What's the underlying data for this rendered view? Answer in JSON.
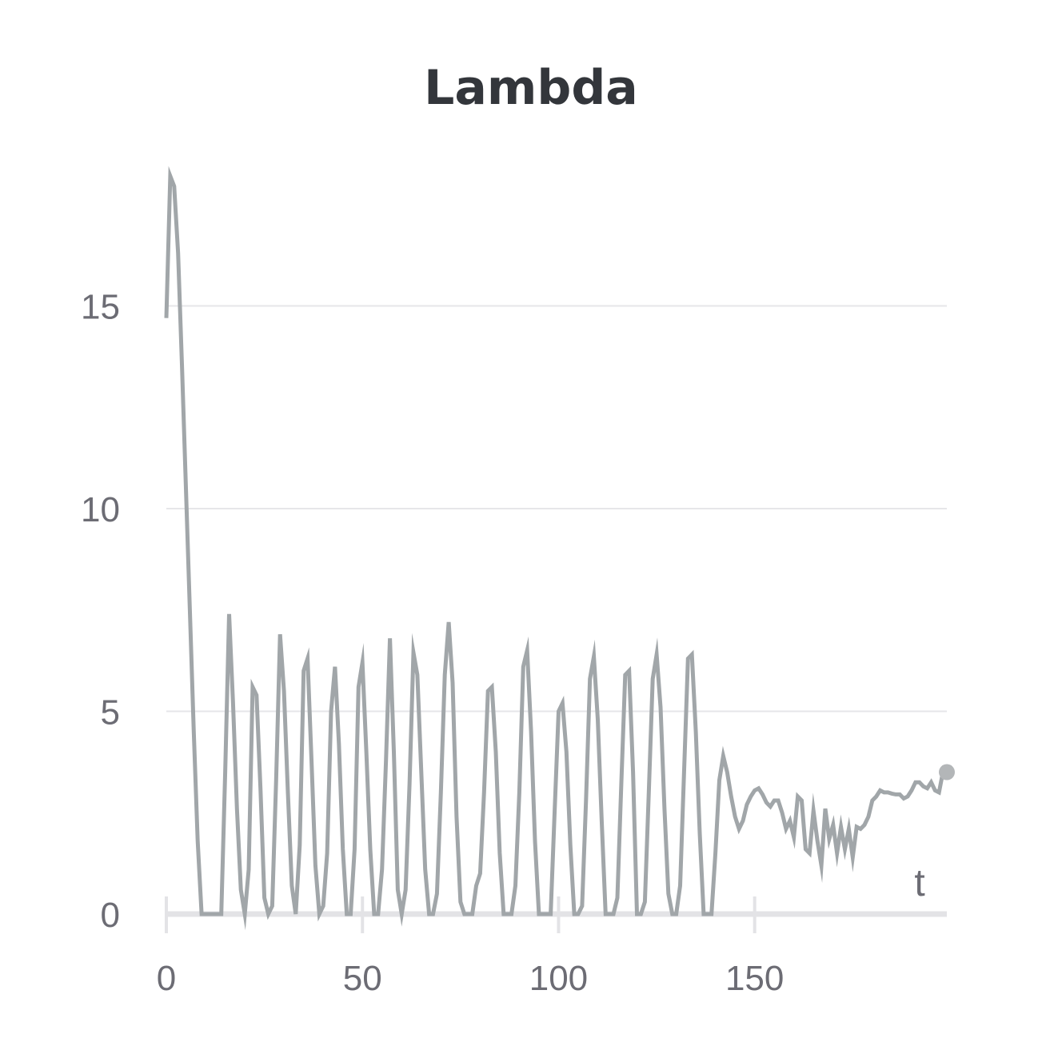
{
  "chart_data": {
    "type": "line",
    "title": "Lambda",
    "xlabel": "t",
    "ylabel": "",
    "xlim": [
      0,
      199
    ],
    "ylim": [
      0,
      18.5
    ],
    "xticks": [
      0,
      50,
      100,
      150
    ],
    "yticks": [
      0,
      5,
      10,
      15
    ],
    "grid": true,
    "legend": "none",
    "line_color": "#a1a6a9",
    "series": [
      {
        "x": [
          0,
          1,
          2,
          3,
          4,
          5,
          6,
          7,
          8,
          9,
          10,
          11,
          12,
          13,
          14,
          15,
          16,
          17,
          18,
          19,
          20,
          21,
          22,
          23,
          24,
          25,
          26,
          27,
          28,
          29,
          30,
          31,
          32,
          33,
          34,
          35,
          36,
          37,
          38,
          39,
          40,
          41,
          42,
          43,
          44,
          45,
          46,
          47,
          48,
          49,
          50,
          51,
          52,
          53,
          54,
          55,
          56,
          57,
          58,
          59,
          60,
          61,
          62,
          63,
          64,
          65,
          66,
          67,
          68,
          69,
          70,
          71,
          72,
          73,
          74,
          75,
          76,
          77,
          78,
          79,
          80,
          81,
          82,
          83,
          84,
          85,
          86,
          87,
          88,
          89,
          90,
          91,
          92,
          93,
          94,
          95,
          96,
          97,
          98,
          99,
          100,
          101,
          102,
          103,
          104,
          105,
          106,
          107,
          108,
          109,
          110,
          111,
          112,
          113,
          114,
          115,
          116,
          117,
          118,
          119,
          120,
          121,
          122,
          123,
          124,
          125,
          126,
          127,
          128,
          129,
          130,
          131,
          132,
          133,
          134,
          135,
          136,
          137,
          138,
          139,
          140,
          141,
          142,
          143,
          144,
          145,
          146,
          147,
          148,
          149,
          150,
          151,
          152,
          153,
          154,
          155,
          156,
          157,
          158,
          159,
          160,
          161,
          162,
          163,
          164,
          165,
          166,
          167,
          168,
          169,
          170,
          171,
          172,
          173,
          174,
          175,
          176,
          177,
          178,
          179,
          180,
          181,
          182,
          183,
          184,
          185,
          186,
          187,
          188,
          189,
          190,
          191,
          192,
          193,
          194,
          195,
          196,
          197,
          198,
          199
        ],
        "values": [
          14.7,
          18.2,
          17.95,
          16.3,
          13.5,
          10.5,
          7.5,
          4.5,
          1.8,
          0,
          0,
          0,
          0,
          0,
          0,
          3.5,
          7.4,
          5.2,
          2.6,
          0.6,
          0,
          1.1,
          5.6,
          5.4,
          3.1,
          0.4,
          0,
          0.2,
          3.3,
          6.9,
          5.5,
          3.0,
          0.7,
          0,
          1.7,
          6.0,
          6.3,
          3.8,
          1.2,
          0,
          0.2,
          1.5,
          5.0,
          6.1,
          4.2,
          1.6,
          0,
          0,
          1.6,
          5.6,
          6.2,
          4.0,
          1.6,
          0,
          0,
          1.1,
          3.8,
          6.8,
          4.0,
          0.6,
          0,
          0.6,
          3.2,
          6.45,
          5.9,
          3.5,
          1.1,
          0,
          0,
          0.5,
          3.0,
          5.9,
          7.2,
          5.7,
          2.4,
          0.3,
          0,
          0,
          0,
          0.7,
          1.0,
          3.0,
          5.5,
          5.6,
          4.0,
          1.5,
          0,
          0,
          0,
          0.7,
          3.0,
          6.1,
          6.5,
          4.5,
          1.8,
          0,
          0,
          0,
          0,
          2.5,
          5.0,
          5.2,
          4.0,
          1.7,
          0,
          0,
          0.2,
          2.8,
          5.8,
          6.35,
          4.8,
          2.3,
          0,
          0,
          0,
          0.4,
          3.2,
          5.9,
          6.0,
          3.5,
          0,
          0,
          0.3,
          3.0,
          5.8,
          6.4,
          5.1,
          2.6,
          0.5,
          0,
          0,
          0.7,
          3.5,
          6.3,
          6.4,
          4.5,
          2.0,
          0,
          0,
          0,
          1.5,
          3.3,
          3.9,
          3.5,
          2.9,
          2.4,
          2.1,
          2.3,
          2.7,
          2.9,
          3.05,
          3.1,
          2.95,
          2.75,
          2.65,
          2.8,
          2.8,
          2.5,
          2.1,
          2.3,
          1.9,
          2.9,
          2.8,
          1.6,
          1.5,
          2.55,
          1.8,
          1.2,
          2.6,
          1.85,
          2.2,
          1.5,
          2.15,
          1.6,
          2.1,
          1.4,
          2.15,
          2.1,
          2.2,
          2.4,
          2.8,
          2.9,
          3.05,
          3.0,
          3.0,
          2.97,
          2.95,
          2.95,
          2.85,
          2.9,
          3.05,
          3.25,
          3.25,
          3.15,
          3.1,
          3.25,
          3.05,
          3.0,
          3.5,
          3.5
        ]
      }
    ]
  }
}
